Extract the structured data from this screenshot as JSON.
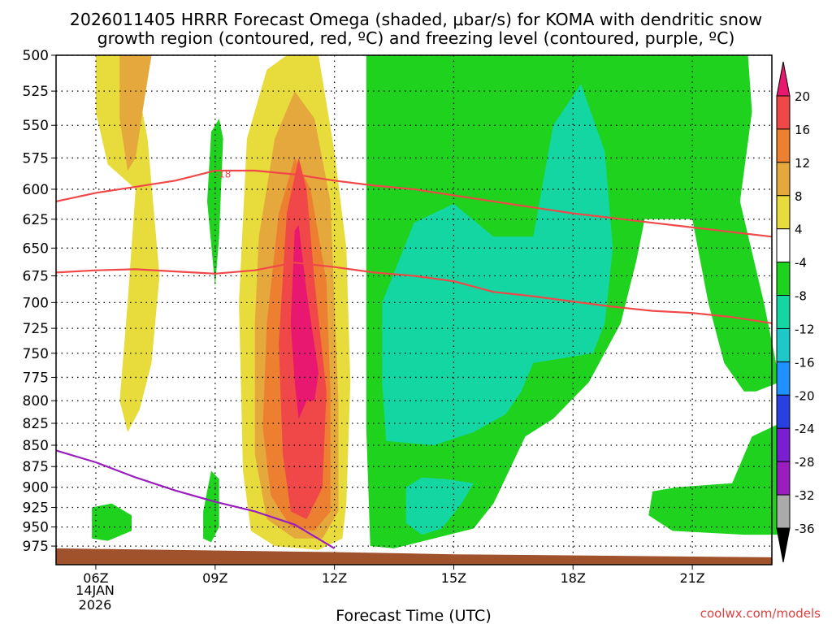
{
  "chart_data": {
    "type": "heatmap",
    "title_lines": [
      "2026011405 HRRR Forecast Omega (shaded, μbar/s) for KOMA with dendritic snow",
      "growth region (contoured, red, ºC) and freezing level (contoured, purple, ºC)"
    ],
    "xlabel": "Forecast Time (UTC)",
    "x_ticks": [
      "06Z",
      "09Z",
      "12Z",
      "15Z",
      "18Z",
      "21Z"
    ],
    "x_tick_hours": [
      6,
      9,
      12,
      15,
      18,
      21
    ],
    "x_date_lines": [
      "14JAN",
      "2026"
    ],
    "x_range_hours": [
      5,
      23
    ],
    "y_ticks": [
      500,
      525,
      550,
      575,
      600,
      625,
      650,
      675,
      700,
      725,
      750,
      775,
      800,
      825,
      850,
      875,
      900,
      925,
      950,
      975
    ],
    "ylim": [
      1000,
      500
    ],
    "y_scale": "log-pressure",
    "grid": "dotted",
    "colorbar": {
      "labels": [
        "20",
        "16",
        "12",
        "8",
        "4",
        "-4",
        "-8",
        "-12",
        "-16",
        "-20",
        "-24",
        "-28",
        "-32",
        "-36"
      ],
      "levels": [
        20,
        16,
        12,
        8,
        4,
        -4,
        -8,
        -12,
        -16,
        -20,
        -24,
        -28,
        -32,
        -36
      ],
      "colors": [
        "#e8176f",
        "#f04848",
        "#ec8030",
        "#e4a83c",
        "#e8dc3c",
        "#ffffff",
        "#1ed21e",
        "#14d6a2",
        "#1ec8c8",
        "#1e90ff",
        "#2840e0",
        "#7a1ed2",
        "#9a1ebe",
        "#aaaaaa",
        "#000000"
      ],
      "end_labels": [
        "20",
        "-36"
      ]
    },
    "contour_dgz_label": "-18",
    "colors": {
      "dgz": "#f04848",
      "freezing": "#9a1ebe",
      "terrain": "#a0522d"
    },
    "dgz_top": [
      [
        5,
        610
      ],
      [
        6,
        603
      ],
      [
        7,
        598
      ],
      [
        8,
        593
      ],
      [
        9,
        585
      ],
      [
        10,
        585
      ],
      [
        11,
        588
      ],
      [
        12,
        593
      ],
      [
        13,
        597
      ],
      [
        14,
        600
      ],
      [
        15,
        605
      ],
      [
        16,
        610
      ],
      [
        17,
        615
      ],
      [
        18,
        620
      ],
      [
        19,
        624
      ],
      [
        20,
        628
      ],
      [
        21,
        632
      ],
      [
        22,
        636
      ],
      [
        23,
        640
      ]
    ],
    "dgz_bottom": [
      [
        5,
        672
      ],
      [
        6,
        670
      ],
      [
        7,
        669
      ],
      [
        8,
        671
      ],
      [
        9,
        673
      ],
      [
        10,
        670
      ],
      [
        11,
        663
      ],
      [
        12,
        667
      ],
      [
        13,
        672
      ],
      [
        14,
        675
      ],
      [
        15,
        680
      ],
      [
        16,
        690
      ],
      [
        17,
        694
      ],
      [
        18,
        699
      ],
      [
        19,
        704
      ],
      [
        20,
        708
      ],
      [
        21,
        710
      ],
      [
        22,
        714
      ],
      [
        23,
        720
      ]
    ],
    "freezing_level": [
      [
        5,
        856
      ],
      [
        6,
        870
      ],
      [
        7,
        888
      ],
      [
        8,
        904
      ],
      [
        9,
        918
      ],
      [
        10,
        930
      ],
      [
        11,
        947
      ],
      [
        12,
        978
      ]
    ],
    "terrain_top": [
      [
        5,
        978
      ],
      [
        12,
        983
      ],
      [
        15,
        986
      ],
      [
        23,
        990
      ]
    ],
    "omega_regions": [
      {
        "value": 4,
        "points": [
          [
            6.0,
            500
          ],
          [
            6.9,
            500
          ],
          [
            7.3,
            560
          ],
          [
            7.6,
            675
          ],
          [
            7.4,
            760
          ],
          [
            7.1,
            810
          ],
          [
            6.8,
            835
          ],
          [
            6.6,
            800
          ],
          [
            6.8,
            700
          ],
          [
            7.0,
            600
          ],
          [
            6.3,
            580
          ],
          [
            6.0,
            540
          ]
        ]
      },
      {
        "value": 8,
        "points": [
          [
            6.6,
            500
          ],
          [
            7.4,
            500
          ],
          [
            7.2,
            535
          ],
          [
            7.0,
            575
          ],
          [
            6.8,
            585
          ],
          [
            6.6,
            545
          ]
        ]
      },
      {
        "value": 4,
        "points": [
          [
            9.8,
            560
          ],
          [
            10.3,
            510
          ],
          [
            10.8,
            500
          ],
          [
            11.6,
            500
          ],
          [
            12.0,
            570
          ],
          [
            12.3,
            650
          ],
          [
            12.4,
            780
          ],
          [
            12.3,
            920
          ],
          [
            12.2,
            965
          ],
          [
            11.6,
            980
          ],
          [
            10.5,
            975
          ],
          [
            9.9,
            955
          ],
          [
            9.7,
            880
          ],
          [
            9.6,
            700
          ]
        ]
      },
      {
        "value": 8,
        "points": [
          [
            10.1,
            640
          ],
          [
            10.5,
            560
          ],
          [
            11.0,
            525
          ],
          [
            11.5,
            545
          ],
          [
            11.9,
            610
          ],
          [
            12.0,
            700
          ],
          [
            12.1,
            800
          ],
          [
            12.1,
            930
          ],
          [
            11.7,
            965
          ],
          [
            11.0,
            965
          ],
          [
            10.3,
            940
          ],
          [
            10.0,
            860
          ],
          [
            10.0,
            720
          ]
        ]
      },
      {
        "value": 12,
        "points": [
          [
            10.3,
            720
          ],
          [
            10.6,
            620
          ],
          [
            11.0,
            575
          ],
          [
            11.4,
            600
          ],
          [
            11.8,
            680
          ],
          [
            11.9,
            790
          ],
          [
            11.9,
            930
          ],
          [
            11.5,
            955
          ],
          [
            10.9,
            950
          ],
          [
            10.4,
            910
          ],
          [
            10.2,
            830
          ]
        ]
      },
      {
        "value": 16,
        "points": [
          [
            10.8,
            620
          ],
          [
            11.1,
            575
          ],
          [
            11.3,
            600
          ],
          [
            11.5,
            680
          ],
          [
            11.8,
            790
          ],
          [
            11.7,
            900
          ],
          [
            11.3,
            940
          ],
          [
            10.9,
            930
          ],
          [
            10.7,
            860
          ],
          [
            10.6,
            740
          ]
        ]
      },
      {
        "value": 20,
        "points": [
          [
            11.0,
            635
          ],
          [
            11.1,
            630
          ],
          [
            11.3,
            690
          ],
          [
            11.6,
            770
          ],
          [
            11.5,
            800
          ],
          [
            11.3,
            800
          ],
          [
            11.1,
            820
          ],
          [
            11.0,
            780
          ],
          [
            10.9,
            720
          ]
        ]
      },
      {
        "value": -4,
        "points": [
          [
            8.9,
            555
          ],
          [
            9.1,
            545
          ],
          [
            9.2,
            560
          ],
          [
            9.1,
            640
          ],
          [
            9.0,
            685
          ],
          [
            8.8,
            610
          ]
        ]
      },
      {
        "value": -4,
        "points": [
          [
            5.9,
            925
          ],
          [
            6.4,
            920
          ],
          [
            6.9,
            935
          ],
          [
            6.9,
            955
          ],
          [
            6.3,
            968
          ],
          [
            5.9,
            965
          ]
        ]
      },
      {
        "value": -4,
        "points": [
          [
            8.7,
            930
          ],
          [
            8.9,
            880
          ],
          [
            9.1,
            890
          ],
          [
            9.1,
            950
          ],
          [
            8.9,
            970
          ],
          [
            8.7,
            965
          ]
        ]
      },
      {
        "value": -4,
        "points": [
          [
            12.8,
            500
          ],
          [
            22.4,
            500
          ],
          [
            22.5,
            540
          ],
          [
            22.2,
            610
          ],
          [
            22.8,
            700
          ],
          [
            23.2,
            780
          ],
          [
            22.6,
            790
          ],
          [
            22.3,
            790
          ],
          [
            21.8,
            760
          ],
          [
            21.4,
            700
          ],
          [
            21.0,
            625
          ],
          [
            19.8,
            625
          ],
          [
            19.6,
            660
          ],
          [
            19.2,
            720
          ],
          [
            18.4,
            780
          ],
          [
            17.5,
            820
          ],
          [
            16.8,
            840
          ],
          [
            16.0,
            920
          ],
          [
            15.5,
            952
          ],
          [
            14.5,
            965
          ],
          [
            13.5,
            978
          ],
          [
            12.9,
            975
          ],
          [
            12.8,
            830
          ],
          [
            12.8,
            650
          ]
        ]
      },
      {
        "value": -4,
        "points": [
          [
            20.0,
            905
          ],
          [
            20.6,
            900
          ],
          [
            22.0,
            895
          ],
          [
            22.5,
            840
          ],
          [
            23.2,
            825
          ],
          [
            23.2,
            960
          ],
          [
            22.3,
            960
          ],
          [
            20.5,
            955
          ],
          [
            19.9,
            935
          ]
        ]
      },
      {
        "value": -8,
        "points": [
          [
            13.2,
            700
          ],
          [
            14.0,
            628
          ],
          [
            15.0,
            612
          ],
          [
            16.0,
            640
          ],
          [
            17.0,
            640
          ],
          [
            17.5,
            550
          ],
          [
            18.2,
            520
          ],
          [
            18.8,
            570
          ],
          [
            19.0,
            650
          ],
          [
            18.8,
            720
          ],
          [
            18.5,
            750
          ],
          [
            17.0,
            760
          ],
          [
            16.7,
            790
          ],
          [
            16.3,
            815
          ],
          [
            15.5,
            835
          ],
          [
            14.5,
            850
          ],
          [
            13.3,
            845
          ],
          [
            13.2,
            780
          ]
        ]
      },
      {
        "value": -8,
        "points": [
          [
            13.8,
            900
          ],
          [
            14.2,
            888
          ],
          [
            14.8,
            890
          ],
          [
            15.5,
            895
          ],
          [
            15.2,
            920
          ],
          [
            14.7,
            952
          ],
          [
            14.2,
            960
          ],
          [
            13.8,
            945
          ]
        ]
      }
    ]
  },
  "credit": "coolwx.com/models"
}
